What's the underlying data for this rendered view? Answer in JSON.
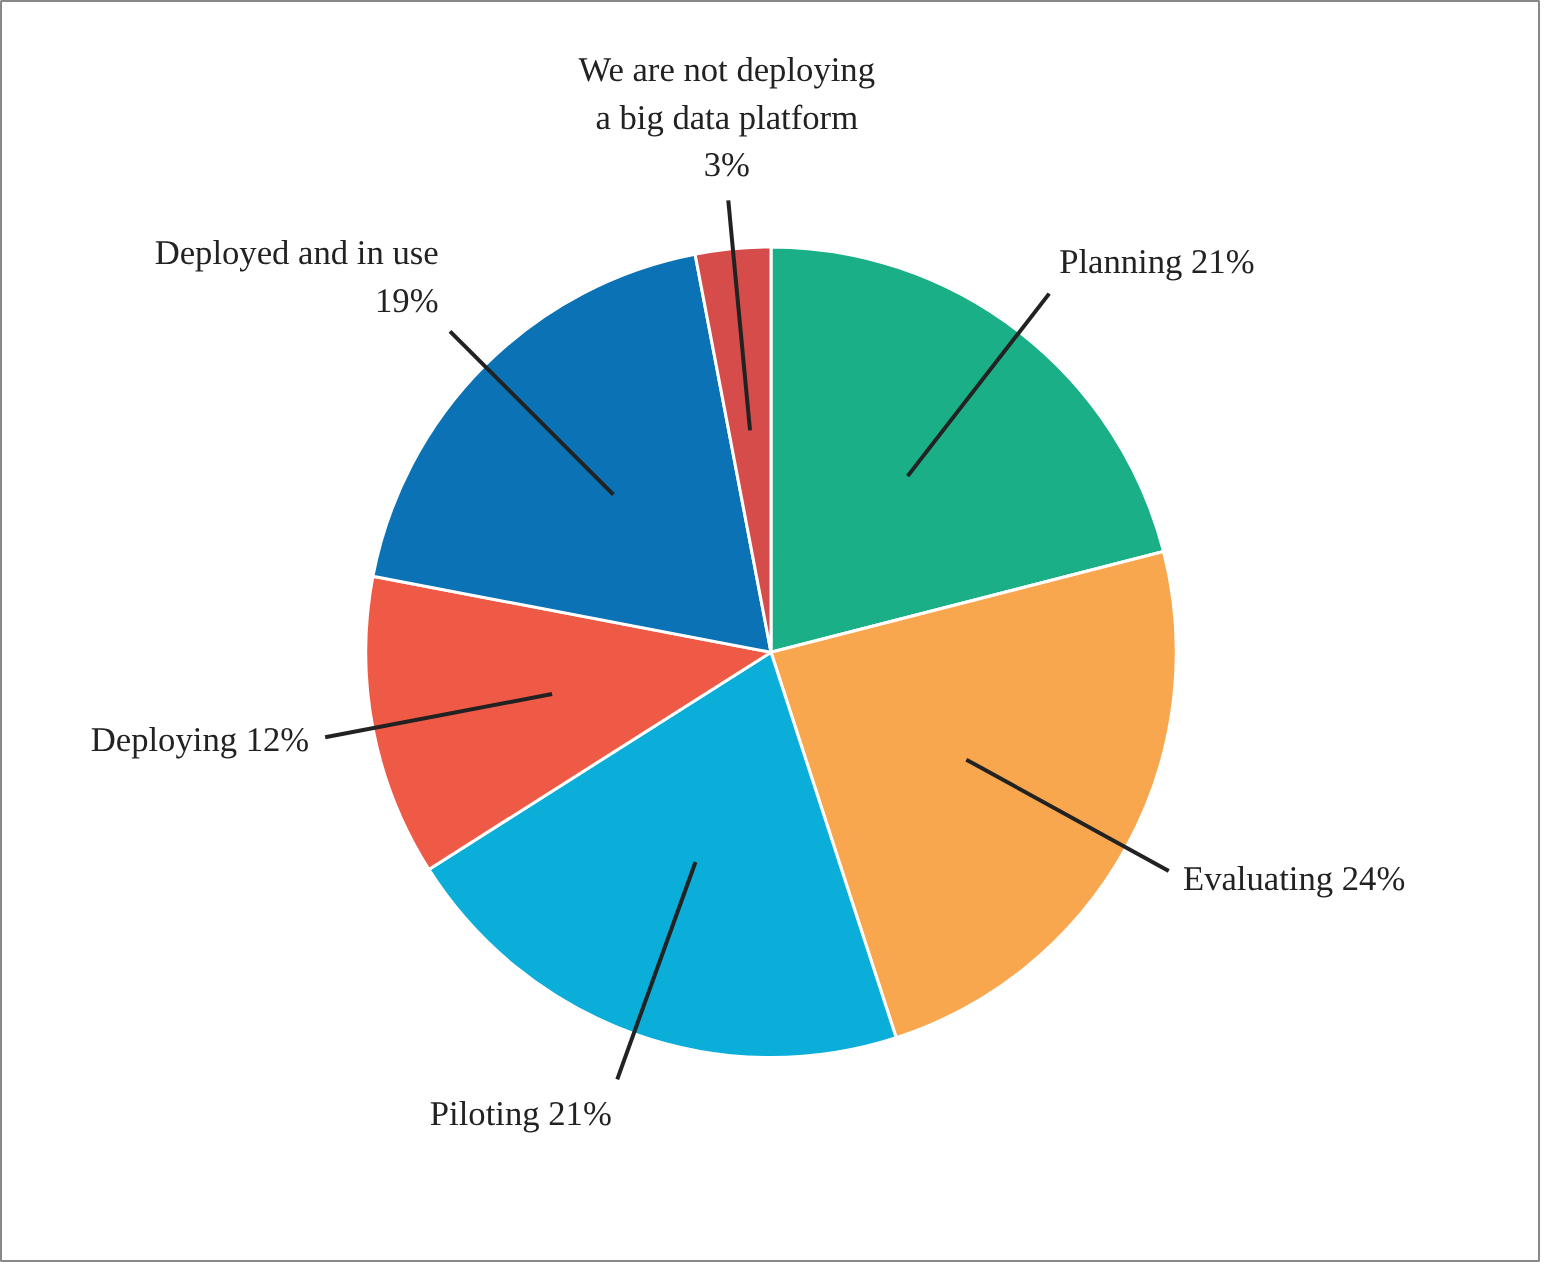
{
  "chart_data": {
    "type": "pie",
    "categories": [
      "Planning",
      "Evaluating",
      "Piloting",
      "Deploying",
      "Deployed and in use",
      "We are not deploying a big data platform"
    ],
    "values": [
      21,
      24,
      21,
      12,
      19,
      3
    ],
    "value_labels": [
      "21%",
      "24%",
      "21%",
      "12%",
      "19%",
      "3%"
    ],
    "colors": [
      "#1aaf87",
      "#f9a74f",
      "#0badd9",
      "#ee5a46",
      "#0a72b5",
      "#d54c4a"
    ]
  }
}
